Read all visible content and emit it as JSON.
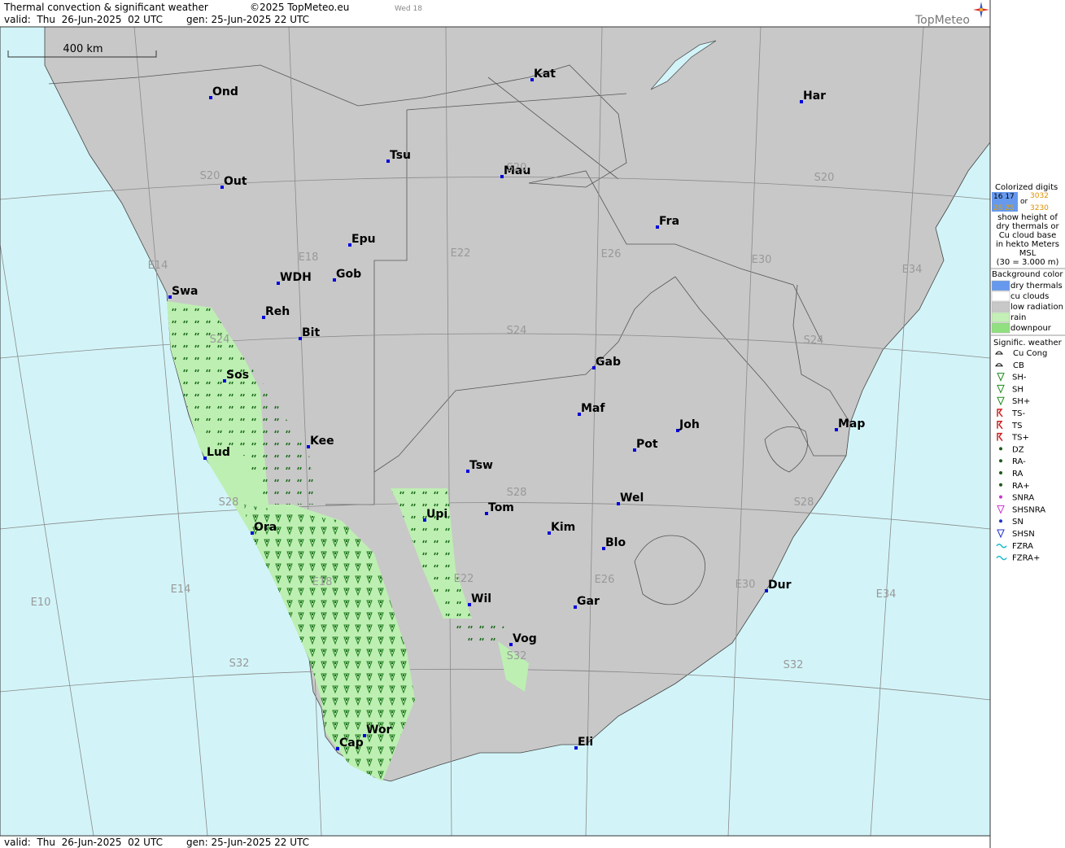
{
  "header": {
    "title": "Thermal convection & significant weather",
    "copyright": "©2025 TopMeteo.eu",
    "day": "Wed 18",
    "valid": "valid:  Thu  26-Jun-2025  02 UTC",
    "gen": "gen: 25-Jun-2025 22 UTC",
    "brand": "TopMeteo"
  },
  "footer": {
    "valid": "valid:  Thu  26-Jun-2025  02 UTC",
    "gen": "gen: 25-Jun-2025 22 UTC"
  },
  "scale": "400 km",
  "cities": [
    "Ond",
    "Kat",
    "Har",
    "Tsu",
    "Mau",
    "Out",
    "Fra",
    "Epu",
    "WDH",
    "Gob",
    "Swa",
    "Reh",
    "Bit",
    "Gab",
    "Sos",
    "Maf",
    "Joh",
    "Map",
    "Kee",
    "Pot",
    "Lud",
    "Tsw",
    "Wel",
    "Tom",
    "Upi",
    "Kim",
    "Ora",
    "Blo",
    "Dur",
    "Wil",
    "Gar",
    "Vog",
    "Wor",
    "Cap",
    "Eli"
  ],
  "grid_labels": [
    "S20",
    "S20",
    "S20",
    "E14",
    "E18",
    "E22",
    "E26",
    "E30",
    "E34",
    "S24",
    "S24",
    "S24",
    "S28",
    "S28",
    "S28",
    "E10",
    "E14",
    "E18",
    "E22",
    "E26",
    "E30",
    "E34",
    "S32",
    "S32",
    "S32"
  ],
  "legend": {
    "digits": {
      "title": "Colorized digits",
      "sample_a": "16 17",
      "or": "or",
      "sample_b": "3032",
      "sample_c": "28 25",
      "sample_d": "3230",
      "text": [
        "show height of",
        "dry thermals or",
        "Cu cloud base",
        "in hekto Meters",
        "MSL",
        "(30 = 3.000 m)"
      ]
    },
    "background": {
      "title": "Background color",
      "items": [
        "dry thermals",
        "cu clouds",
        "low radiation",
        "rain",
        "downpour"
      ]
    },
    "weather": {
      "title": "Signific. weather",
      "items": [
        "Cu Cong",
        "CB",
        "SH-",
        "SH",
        "SH+",
        "TS-",
        "TS",
        "TS+",
        "DZ",
        "RA-",
        "RA",
        "RA+",
        "SNRA",
        "SHSNRA",
        "SN",
        "SHSN",
        "FZRA",
        "FZRA+"
      ]
    }
  }
}
